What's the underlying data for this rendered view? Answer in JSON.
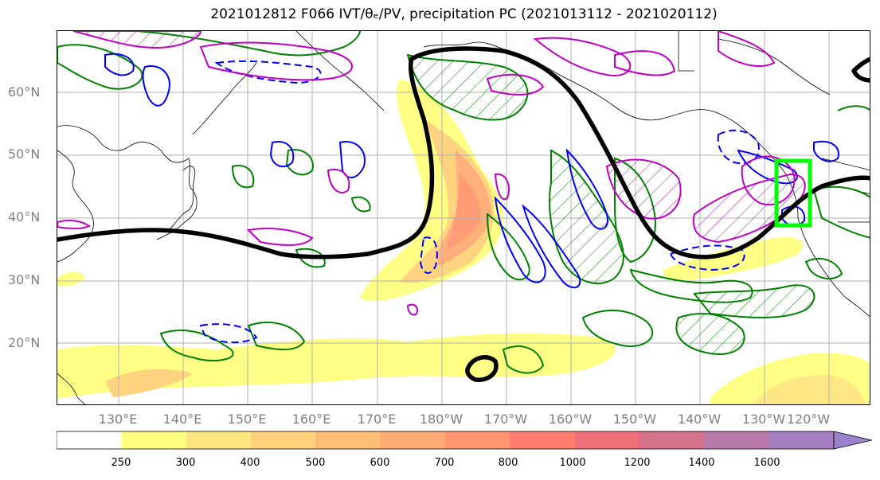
{
  "title": "2021012812 F066 IVT/θₑ/PV, precipitation PC (2021013112 - 2021020112)",
  "map": {
    "lat_labels": [
      "60°N",
      "50°N",
      "40°N",
      "30°N",
      "20°N"
    ],
    "lon_labels": [
      "130°E",
      "140°E",
      "150°E",
      "160°E",
      "170°E",
      "180°W",
      "170°W",
      "160°W",
      "150°W",
      "140°W",
      "130°W",
      "120°W"
    ],
    "highlight_box_color": "#00ff00",
    "contour_colors": {
      "theta_e": "#000000",
      "pv_positive": "#0000ff",
      "pv_pc": "#008000",
      "pv_magenta": "#c000c0"
    }
  },
  "colorbar": {
    "ticks": [
      "250",
      "300",
      "400",
      "500",
      "600",
      "700",
      "800",
      "1000",
      "1200",
      "1400",
      "1600"
    ],
    "colors": [
      "#ffffff",
      "#ffff80",
      "#ffe680",
      "#ffd17a",
      "#ffbe75",
      "#ffab73",
      "#ff9670",
      "#ff7f6e",
      "#f0707a",
      "#d67289",
      "#b97aab",
      "#a67fc3",
      "#9b82cc"
    ]
  }
}
